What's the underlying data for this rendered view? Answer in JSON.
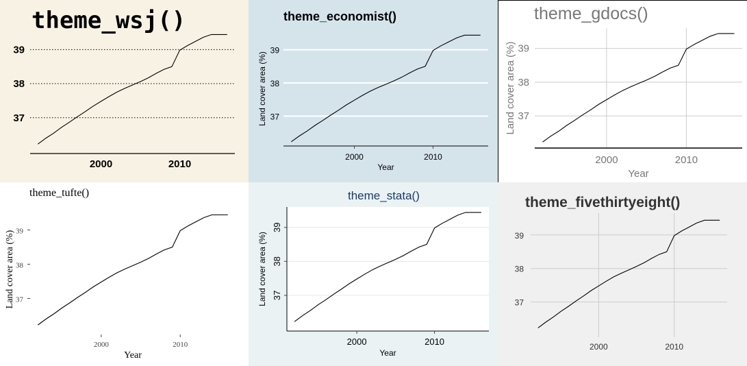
{
  "x": [
    1992,
    1993,
    1994,
    1995,
    1996,
    1997,
    1998,
    1999,
    2000,
    2001,
    2002,
    2003,
    2004,
    2005,
    2006,
    2007,
    2008,
    2009,
    2010,
    2011,
    2012,
    2013,
    2014,
    2015,
    2016
  ],
  "y": [
    36.23,
    36.4,
    36.55,
    36.72,
    36.87,
    37.03,
    37.18,
    37.34,
    37.48,
    37.62,
    37.75,
    37.86,
    37.96,
    38.06,
    38.17,
    38.3,
    38.42,
    38.5,
    38.98,
    39.12,
    39.24,
    39.36,
    39.44,
    39.44,
    39.44
  ],
  "chart_data": [
    {
      "type": "line",
      "title": "theme_wsj()",
      "xlabel": "",
      "ylabel": "",
      "xticks": [
        2000,
        2010
      ],
      "yticks": [
        37,
        38,
        39
      ],
      "grid": "horizontal-dotted",
      "background": "#f8f2e4",
      "xlim": [
        1991,
        2017
      ],
      "ylim": [
        35.95,
        39.65
      ]
    },
    {
      "type": "line",
      "title": "theme_economist()",
      "xlabel": "Year",
      "ylabel": "Land cover area (%)",
      "xticks": [
        2000,
        2010
      ],
      "yticks": [
        37,
        38,
        39
      ],
      "grid": "horizontal-white",
      "background": "#d5e4eb",
      "xlim": [
        1991,
        2017
      ],
      "ylim": [
        36.1,
        39.55
      ]
    },
    {
      "type": "line",
      "title": "theme_gdocs()",
      "xlabel": "Year",
      "ylabel": "Land cover area (%)",
      "xticks": [
        2000,
        2010
      ],
      "yticks": [
        37,
        38,
        39
      ],
      "grid": "both",
      "background": "#ffffff",
      "xlim": [
        1991,
        2017
      ],
      "ylim": [
        36.05,
        39.6
      ]
    },
    {
      "type": "line",
      "title": "theme_tufte()",
      "xlabel": "Year",
      "ylabel": "Land cover area (%)",
      "xticks": [
        2000,
        2010
      ],
      "yticks": [
        37,
        38,
        39
      ],
      "grid": "none",
      "background": "#ffffff",
      "xlim": [
        1991,
        2017
      ],
      "ylim": [
        35.95,
        39.75
      ]
    },
    {
      "type": "line",
      "title": "theme_stata()",
      "xlabel": "Year",
      "ylabel": "Land cover area (%)",
      "xticks": [
        2000,
        2010
      ],
      "yticks": [
        37,
        38,
        39
      ],
      "grid": "horizontal",
      "background": "#eaf2f3",
      "xlim": [
        1991,
        2017
      ],
      "ylim": [
        35.95,
        39.6
      ]
    },
    {
      "type": "line",
      "title": "theme_fivethirtyeight()",
      "xlabel": "",
      "ylabel": "",
      "xticks": [
        2000,
        2010
      ],
      "yticks": [
        37,
        38,
        39
      ],
      "grid": "both",
      "background": "#f0f0f0",
      "xlim": [
        1991,
        2017
      ],
      "ylim": [
        35.95,
        39.65
      ]
    }
  ]
}
